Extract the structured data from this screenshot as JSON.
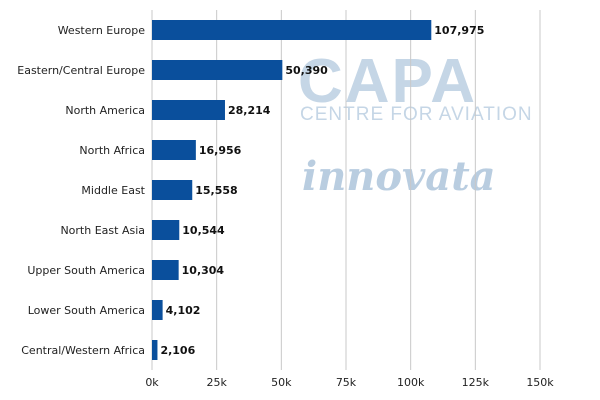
{
  "chart_data": {
    "type": "bar",
    "orientation": "horizontal",
    "categories": [
      "Western Europe",
      "Eastern/Central Europe",
      "North America",
      "North Africa",
      "Middle East",
      "North East Asia",
      "Upper South America",
      "Lower South America",
      "Central/Western Africa"
    ],
    "values": [
      107975,
      50390,
      28214,
      16956,
      15558,
      10544,
      10304,
      4102,
      2106
    ],
    "value_labels": [
      "107,975",
      "50,390",
      "28,214",
      "16,956",
      "15,558",
      "10,544",
      "10,304",
      "4,102",
      "2,106"
    ],
    "xlim": [
      0,
      150000
    ],
    "x_ticks": [
      0,
      25000,
      50000,
      75000,
      100000,
      125000,
      150000
    ],
    "x_tick_labels": [
      "0k",
      "25k",
      "50k",
      "75k",
      "100k",
      "125k",
      "150k"
    ],
    "grid": true,
    "bar_color": "#0a4f9c",
    "grid_color": "#c8c8c8"
  },
  "watermarks": {
    "capa": "CAPA",
    "capa_sub": "CENTRE FOR AVIATION",
    "innovata": "innovata"
  }
}
